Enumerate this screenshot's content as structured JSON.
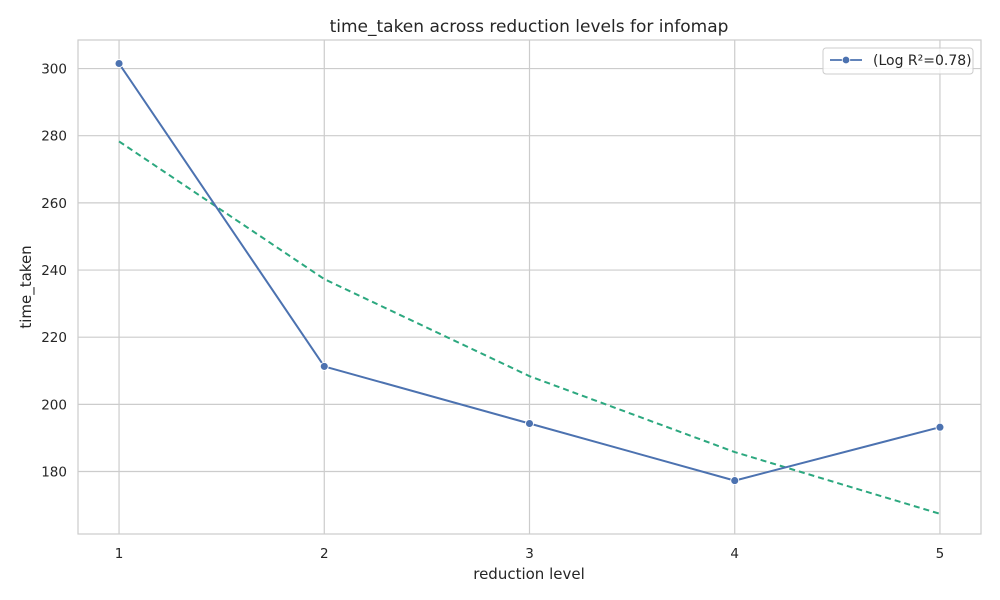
{
  "chart_data": {
    "type": "line",
    "title": "time_taken across reduction levels for infomap",
    "xlabel": "reduction level",
    "ylabel": "time_taken",
    "x": [
      1,
      2,
      3,
      4,
      5
    ],
    "xlim": [
      0.8,
      5.2
    ],
    "ylim": [
      161.4,
      308.5
    ],
    "xticks": [
      1,
      2,
      3,
      4,
      5
    ],
    "yticks": [
      180,
      200,
      220,
      240,
      260,
      280,
      300
    ],
    "grid": true,
    "legend_position": "top-right",
    "series": [
      {
        "name": "(Log R²=0.78)",
        "values": [
          301.5,
          211.3,
          194.3,
          177.3,
          193.2
        ],
        "color": "#4c72b0",
        "style": "solid",
        "marker": "circle"
      },
      {
        "values": [
          278.3,
          237.3,
          208.4,
          185.8,
          167.4
        ],
        "color": "#2ca87f",
        "style": "dashed",
        "marker": "none"
      }
    ]
  }
}
